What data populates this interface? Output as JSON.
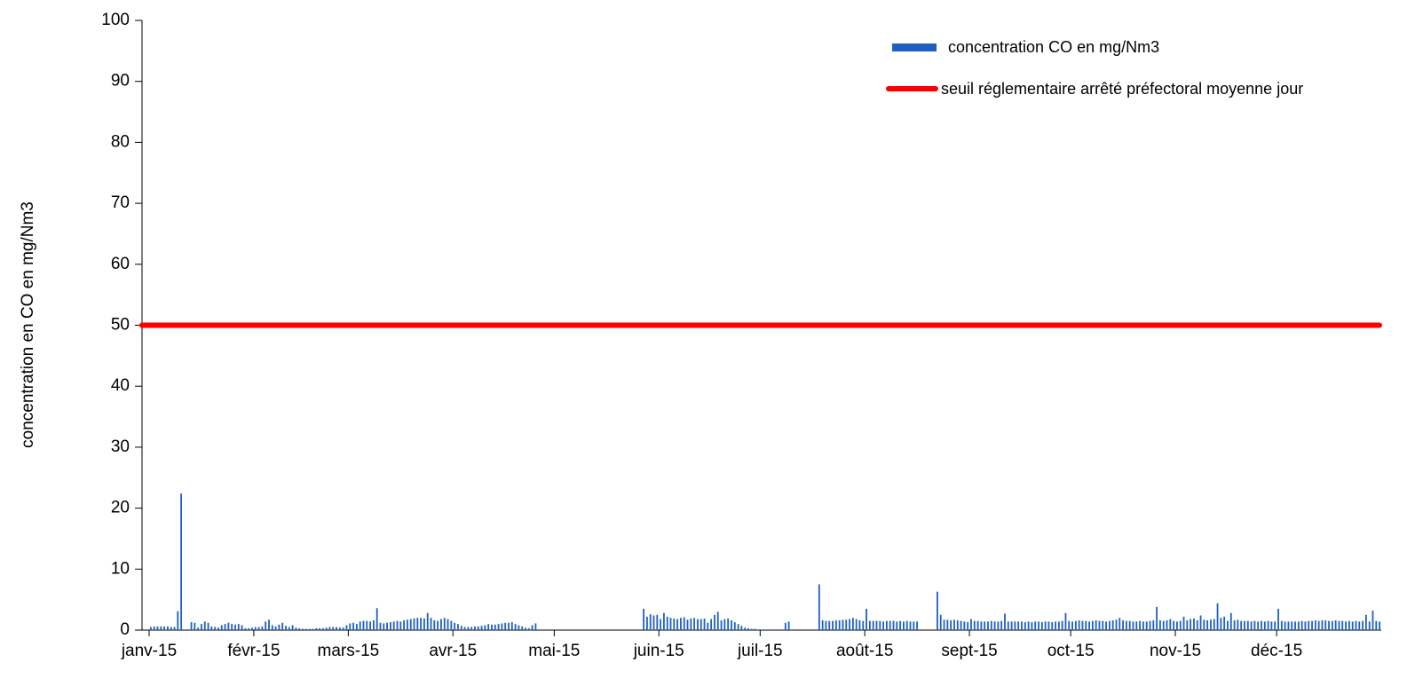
{
  "chart_data": {
    "type": "bar",
    "ylabel": "concentration en CO en mg/Nm3",
    "ylim": [
      0,
      100
    ],
    "yticks": [
      0,
      10,
      20,
      30,
      40,
      50,
      60,
      70,
      80,
      90,
      100
    ],
    "categories": [
      "janv-15",
      null,
      null,
      null,
      null,
      null,
      null,
      null,
      null,
      null,
      null,
      null,
      null,
      null,
      null,
      null,
      null,
      null,
      null,
      null,
      null,
      null,
      null,
      null,
      null,
      null,
      null,
      null,
      null,
      null,
      null,
      "févr-15",
      null,
      null,
      null,
      null,
      null,
      null,
      null,
      null,
      null,
      null,
      null,
      null,
      null,
      null,
      null,
      null,
      null,
      null,
      null,
      null,
      null,
      null,
      null,
      null,
      null,
      null,
      null,
      "mars-15",
      null,
      null,
      null,
      null,
      null,
      null,
      null,
      null,
      null,
      null,
      null,
      null,
      null,
      null,
      null,
      null,
      null,
      null,
      null,
      null,
      null,
      null,
      null,
      null,
      null,
      null,
      null,
      null,
      null,
      null,
      "avr-15",
      null,
      null,
      null,
      null,
      null,
      null,
      null,
      null,
      null,
      null,
      null,
      null,
      null,
      null,
      null,
      null,
      null,
      null,
      null,
      null,
      null,
      null,
      null,
      null,
      null,
      null,
      null,
      null,
      null,
      "mai-15",
      null,
      null,
      null,
      null,
      null,
      null,
      null,
      null,
      null,
      null,
      null,
      null,
      null,
      null,
      null,
      null,
      null,
      null,
      null,
      null,
      null,
      null,
      null,
      null,
      null,
      null,
      null,
      null,
      null,
      null,
      "juin-15",
      null,
      null,
      null,
      null,
      null,
      null,
      null,
      null,
      null,
      null,
      null,
      null,
      null,
      null,
      null,
      null,
      null,
      null,
      null,
      null,
      null,
      null,
      null,
      null,
      null,
      null,
      null,
      null,
      null,
      "juil-15",
      null,
      null,
      null,
      null,
      null,
      null,
      null,
      null,
      null,
      null,
      null,
      null,
      null,
      null,
      null,
      null,
      null,
      null,
      null,
      null,
      null,
      null,
      null,
      null,
      null,
      null,
      null,
      null,
      null,
      null,
      "août-15",
      null,
      null,
      null,
      null,
      null,
      null,
      null,
      null,
      null,
      null,
      null,
      null,
      null,
      null,
      null,
      null,
      null,
      null,
      null,
      null,
      null,
      null,
      null,
      null,
      null,
      null,
      null,
      null,
      null,
      null,
      "sept-15",
      null,
      null,
      null,
      null,
      null,
      null,
      null,
      null,
      null,
      null,
      null,
      null,
      null,
      null,
      null,
      null,
      null,
      null,
      null,
      null,
      null,
      null,
      null,
      null,
      null,
      null,
      null,
      null,
      null,
      "oct-15",
      null,
      null,
      null,
      null,
      null,
      null,
      null,
      null,
      null,
      null,
      null,
      null,
      null,
      null,
      null,
      null,
      null,
      null,
      null,
      null,
      null,
      null,
      null,
      null,
      null,
      null,
      null,
      null,
      null,
      null,
      "nov-15",
      null,
      null,
      null,
      null,
      null,
      null,
      null,
      null,
      null,
      null,
      null,
      null,
      null,
      null,
      null,
      null,
      null,
      null,
      null,
      null,
      null,
      null,
      null,
      null,
      null,
      null,
      null,
      null,
      null,
      "déc-15",
      null,
      null,
      null,
      null,
      null,
      null,
      null,
      null,
      null,
      null,
      null,
      null,
      null,
      null,
      null,
      null,
      null,
      null,
      null,
      null,
      null,
      null,
      null,
      null,
      null,
      null,
      null,
      null,
      null,
      null
    ],
    "series": [
      {
        "name": "concentration CO en  mg/Nm3",
        "color": "#1f5fbf",
        "values": [
          0.5,
          0.6,
          0.6,
          0.6,
          0.6,
          0.6,
          0.5,
          0.5,
          3.1,
          22.4,
          0,
          0,
          1.3,
          1.2,
          0.4,
          1,
          1.4,
          1.2,
          0.6,
          0.5,
          0.4,
          0.8,
          1,
          1.2,
          1,
          0.9,
          1,
          0.8,
          0.3,
          0.3,
          0.4,
          0.5,
          0.5,
          0.6,
          1.4,
          1.7,
          0.8,
          0.6,
          0.9,
          1.2,
          0.7,
          0.5,
          0.8,
          0.4,
          0.3,
          0.2,
          0.2,
          0.2,
          0.2,
          0.3,
          0.3,
          0.3,
          0.4,
          0.5,
          0.5,
          0.5,
          0.4,
          0.4,
          0.8,
          1.1,
          1.2,
          1,
          1.4,
          1.5,
          1.5,
          1.4,
          1.6,
          3.6,
          1.2,
          1.1,
          1.2,
          1.3,
          1.4,
          1.5,
          1.4,
          1.6,
          1.7,
          1.8,
          1.9,
          2,
          2,
          1.9,
          2.8,
          2,
          1.6,
          1.5,
          1.8,
          2,
          1.8,
          1.5,
          1.2,
          1,
          0.7,
          0.5,
          0.5,
          0.5,
          0.6,
          0.6,
          0.7,
          0.8,
          1,
          0.9,
          0.9,
          1,
          1.1,
          1.2,
          1.2,
          1.3,
          1,
          0.8,
          0.6,
          0.4,
          0.3,
          0.8,
          1.1,
          0,
          0,
          0,
          0,
          0,
          0,
          0,
          0,
          0,
          0,
          0,
          0,
          0,
          0,
          0,
          0,
          0,
          0,
          0,
          0,
          0,
          0,
          0,
          0,
          0,
          0,
          0,
          0,
          0,
          0,
          0,
          3.5,
          2.2,
          2.6,
          2.4,
          2.5,
          1.8,
          2.8,
          2.2,
          2,
          1.9,
          1.8,
          2,
          2.1,
          1.7,
          1.9,
          2,
          1.8,
          1.8,
          1.9,
          1.2,
          1.8,
          2.5,
          3,
          1.6,
          1.8,
          1.9,
          1.6,
          1.3,
          1,
          0.7,
          0.4,
          0.3,
          0.2,
          0.2,
          0.1,
          0.1,
          0.1,
          0.1,
          0.1,
          0.1,
          0.1,
          0,
          1.2,
          1.4,
          0,
          0,
          0,
          0,
          0,
          0,
          0,
          0,
          7.5,
          1.6,
          1.5,
          1.5,
          1.5,
          1.6,
          1.6,
          1.7,
          1.7,
          1.8,
          2,
          1.8,
          1.6,
          1.5,
          3.5,
          1.5,
          1.5,
          1.5,
          1.5,
          1.4,
          1.5,
          1.5,
          1.5,
          1.4,
          1.5,
          1.4,
          1.5,
          1.4,
          1.4,
          1.4,
          0,
          0,
          0,
          0,
          0,
          6.3,
          2.5,
          1.7,
          1.7,
          1.6,
          1.7,
          1.6,
          1.5,
          1.4,
          1.3,
          1.8,
          1.5,
          1.5,
          1.4,
          1.4,
          1.4,
          1.5,
          1.4,
          1.4,
          1.5,
          2.7,
          1.4,
          1.4,
          1.4,
          1.4,
          1.4,
          1.3,
          1.4,
          1.3,
          1.4,
          1.4,
          1.3,
          1.4,
          1.4,
          1.3,
          1.4,
          1.4,
          1.5,
          2.8,
          1.5,
          1.4,
          1.5,
          1.6,
          1.5,
          1.5,
          1.4,
          1.5,
          1.6,
          1.5,
          1.5,
          1.4,
          1.5,
          1.6,
          1.7,
          2,
          1.6,
          1.5,
          1.5,
          1.4,
          1.4,
          1.5,
          1.4,
          1.4,
          1.5,
          1.6,
          3.8,
          1.6,
          1.5,
          1.6,
          1.8,
          1.5,
          1.4,
          1.5,
          2.2,
          1.6,
          1.8,
          1.9,
          1.6,
          2.4,
          1.7,
          1.6,
          1.7,
          1.8,
          4.4,
          2,
          2.2,
          1.5,
          2.8,
          1.6,
          1.7,
          1.5,
          1.5,
          1.5,
          1.4,
          1.5,
          1.4,
          1.5,
          1.4,
          1.5,
          1.4,
          1.4,
          3.5,
          1.5,
          1.4,
          1.4,
          1.4,
          1.4,
          1.4,
          1.5,
          1.4,
          1.5,
          1.5,
          1.6,
          1.5,
          1.6,
          1.6,
          1.5,
          1.5,
          1.6,
          1.5,
          1.5,
          1.4,
          1.5,
          1.4,
          1.5,
          1.4,
          1.5,
          2.5,
          1.4,
          3.2,
          1.5,
          1.4
        ]
      }
    ],
    "threshold": {
      "name": "seuil réglementaire arrêté préfectoral moyenne jour",
      "value": 50,
      "color": "#ff0000"
    }
  }
}
